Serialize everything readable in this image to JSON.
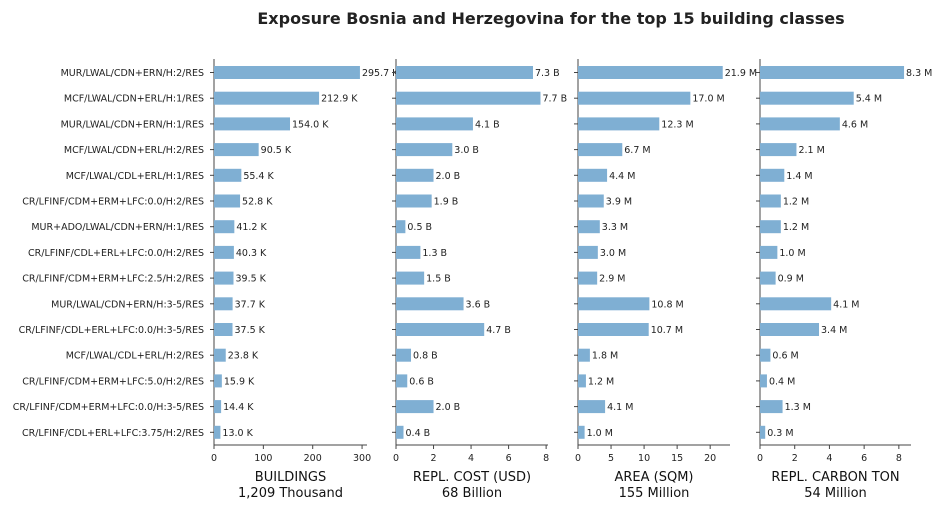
{
  "chart_data": {
    "type": "bar",
    "orientation": "horizontal",
    "title": "Exposure Bosnia and Herzegovina for the top 15 building classes",
    "bar_color": "#7fafd3",
    "categories": [
      "MUR/LWAL/CDN+ERN/H:2/RES",
      "MCF/LWAL/CDN+ERL/H:1/RES",
      "MUR/LWAL/CDN+ERN/H:1/RES",
      "MCF/LWAL/CDN+ERL/H:2/RES",
      "MCF/LWAL/CDL+ERL/H:1/RES",
      "CR/LFINF/CDM+ERM+LFC:0.0/H:2/RES",
      "MUR+ADO/LWAL/CDN+ERN/H:1/RES",
      "CR/LFINF/CDL+ERL+LFC:0.0/H:2/RES",
      "CR/LFINF/CDM+ERM+LFC:2.5/H:2/RES",
      "MUR/LWAL/CDN+ERN/H:3-5/RES",
      "CR/LFINF/CDL+ERL+LFC:0.0/H:3-5/RES",
      "MCF/LWAL/CDL+ERL/H:2/RES",
      "CR/LFINF/CDM+ERM+LFC:5.0/H:2/RES",
      "CR/LFINF/CDM+ERM+LFC:0.0/H:3-5/RES",
      "CR/LFINF/CDL+ERL+LFC:3.75/H:2/RES"
    ],
    "panels": [
      {
        "xlabel": "BUILDINGS",
        "total": "1,209 Thousand",
        "xlim": [
          0,
          310
        ],
        "ticks": [
          0,
          100,
          200,
          300
        ],
        "values": [
          295.7,
          212.9,
          154.0,
          90.5,
          55.4,
          52.8,
          41.2,
          40.3,
          39.5,
          37.7,
          37.5,
          23.8,
          15.9,
          14.4,
          13.0
        ],
        "labels": [
          "295.7 K",
          "212.9 K",
          "154.0 K",
          "90.5 K",
          "55.4 K",
          "52.8 K",
          "41.2 K",
          "40.3 K",
          "39.5 K",
          "37.7 K",
          "37.5 K",
          "23.8 K",
          "15.9 K",
          "14.4 K",
          "13.0 K"
        ]
      },
      {
        "xlabel": "REPL. COST (USD)",
        "total": "68 Billion",
        "xlim": [
          0,
          8.1
        ],
        "ticks": [
          0,
          2,
          4,
          6,
          8
        ],
        "values": [
          7.3,
          7.7,
          4.1,
          3.0,
          2.0,
          1.9,
          0.5,
          1.3,
          1.5,
          3.6,
          4.7,
          0.8,
          0.6,
          2.0,
          0.4
        ],
        "labels": [
          "7.3 B",
          "7.7 B",
          "4.1 B",
          "3.0 B",
          "2.0 B",
          "1.9 B",
          "0.5 B",
          "1.3 B",
          "1.5 B",
          "3.6 B",
          "4.7 B",
          "0.8 B",
          "0.6 B",
          "2.0 B",
          "0.4 B"
        ]
      },
      {
        "xlabel": "AREA (SQM)",
        "total": "155 Million",
        "xlim": [
          0,
          23
        ],
        "ticks": [
          0,
          5,
          10,
          15,
          20
        ],
        "values": [
          21.9,
          17.0,
          12.3,
          6.7,
          4.4,
          3.9,
          3.3,
          3.0,
          2.9,
          10.8,
          10.7,
          1.8,
          1.2,
          4.1,
          1.0
        ],
        "labels": [
          "21.9 M",
          "17.0 M",
          "12.3 M",
          "6.7 M",
          "4.4 M",
          "3.9 M",
          "3.3 M",
          "3.0 M",
          "2.9 M",
          "10.8 M",
          "10.7 M",
          "1.8 M",
          "1.2 M",
          "4.1 M",
          "1.0 M"
        ]
      },
      {
        "xlabel": "REPL. CARBON TON",
        "total": "54 Million",
        "xlim": [
          0,
          8.7
        ],
        "ticks": [
          0,
          2,
          4,
          6,
          8
        ],
        "values": [
          8.3,
          5.4,
          4.6,
          2.1,
          1.4,
          1.2,
          1.2,
          1.0,
          0.9,
          4.1,
          3.4,
          0.6,
          0.4,
          1.3,
          0.3
        ],
        "labels": [
          "8.3 M",
          "5.4 M",
          "4.6 M",
          "2.1 M",
          "1.4 M",
          "1.2 M",
          "1.2 M",
          "1.0 M",
          "0.9 M",
          "4.1 M",
          "3.4 M",
          "0.6 M",
          "0.4 M",
          "1.3 M",
          "0.3 M"
        ]
      }
    ]
  }
}
